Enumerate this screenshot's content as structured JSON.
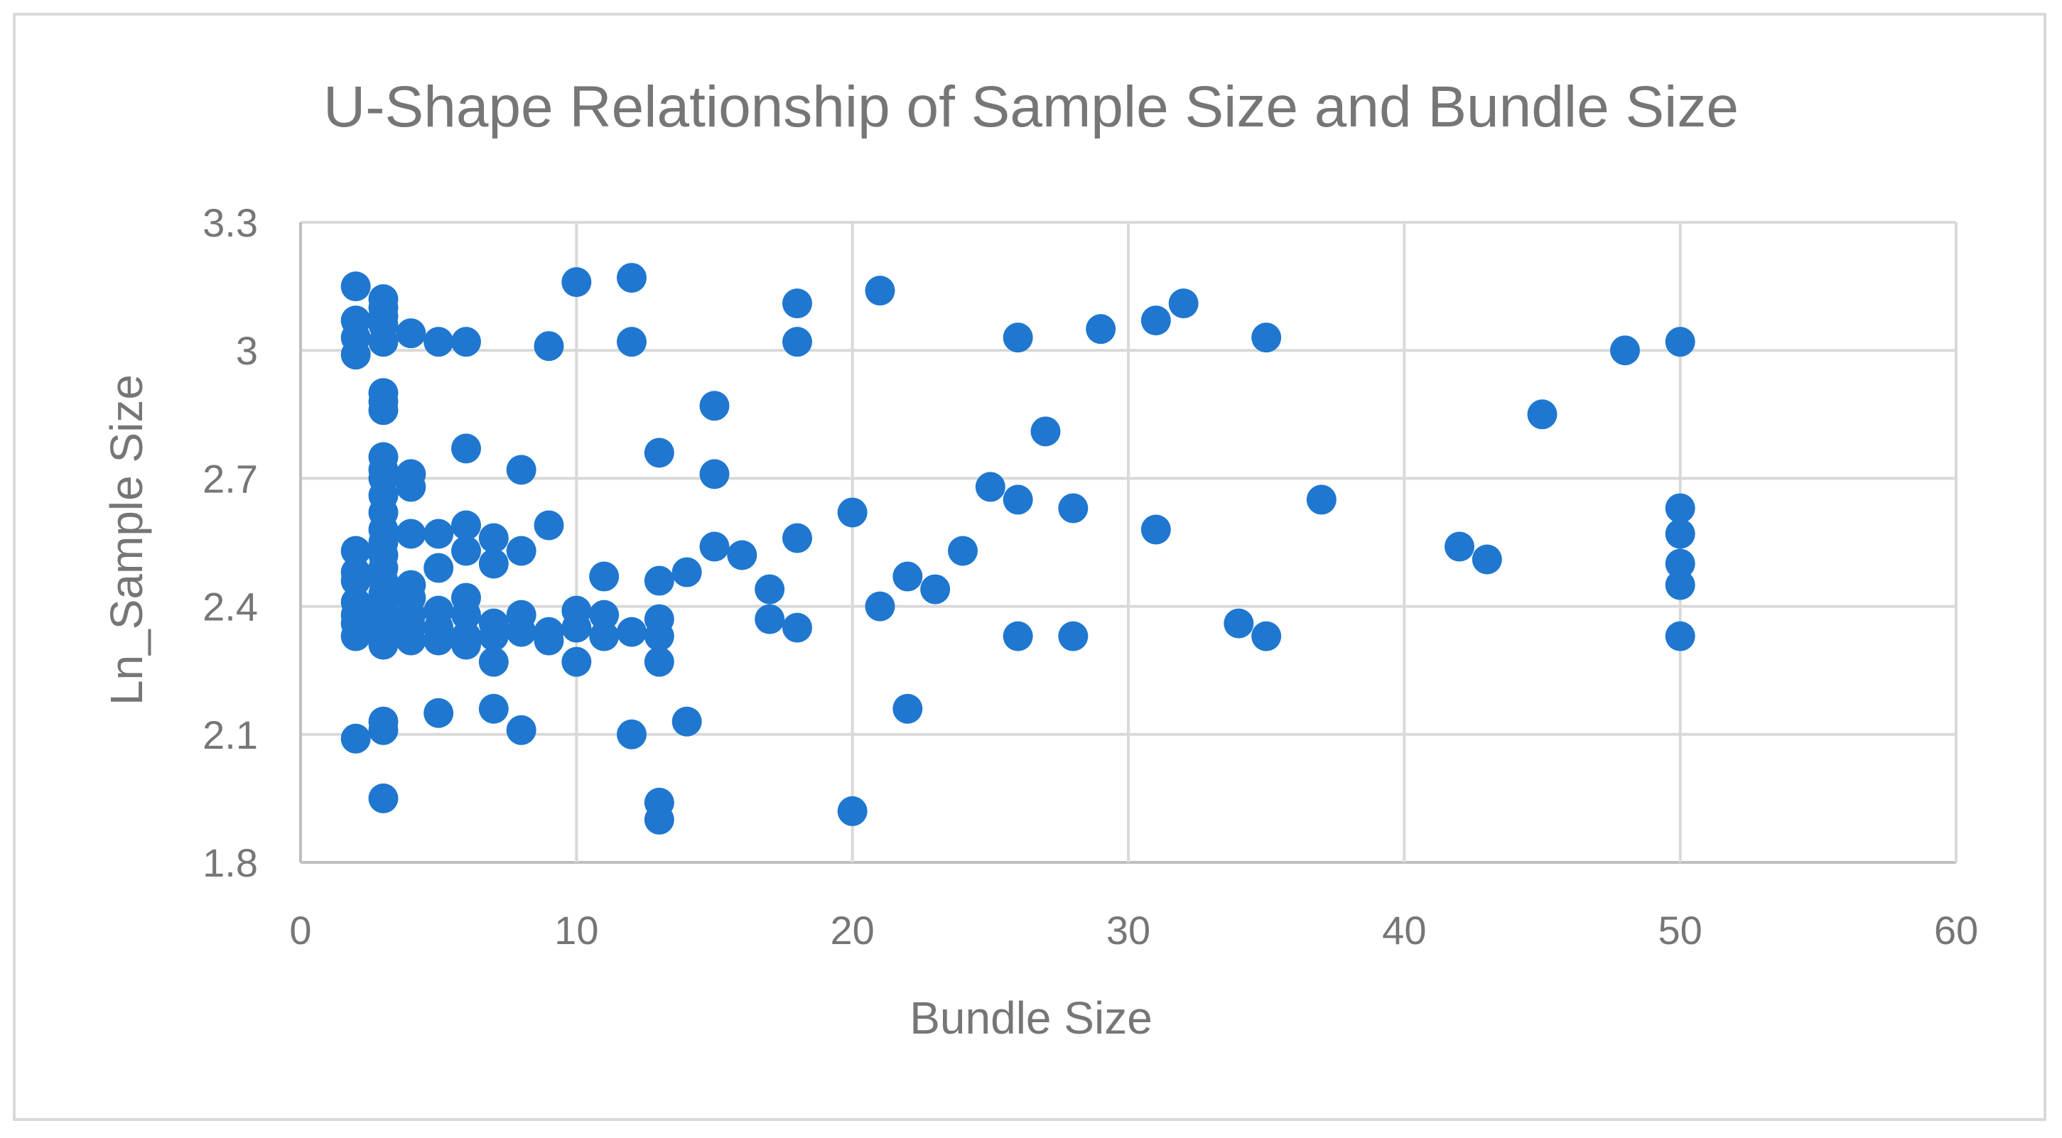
{
  "chart_data": {
    "type": "scatter",
    "title": "U-Shape Relationship of Sample Size and Bundle Size",
    "xlabel": "Bundle Size",
    "ylabel": "Ln_Sample Size",
    "xlim": [
      0,
      60
    ],
    "ylim": [
      1.8,
      3.3
    ],
    "xticks": [
      "0",
      "10",
      "20",
      "30",
      "40",
      "50",
      "60"
    ],
    "yticks": [
      "1.8",
      "2.1",
      "2.4",
      "2.7",
      "3",
      "3.3"
    ],
    "grid": true,
    "marker_color": "#1f77d0",
    "points": [
      [
        2,
        3.15
      ],
      [
        2,
        3.07
      ],
      [
        2,
        3.03
      ],
      [
        2,
        2.99
      ],
      [
        2,
        2.53
      ],
      [
        2,
        2.48
      ],
      [
        2,
        2.46
      ],
      [
        2,
        2.41
      ],
      [
        2,
        2.38
      ],
      [
        2,
        2.36
      ],
      [
        2,
        2.33
      ],
      [
        2,
        2.09
      ],
      [
        3,
        3.12
      ],
      [
        3,
        3.1
      ],
      [
        3,
        3.08
      ],
      [
        3,
        3.06
      ],
      [
        3,
        3.02
      ],
      [
        3,
        2.9
      ],
      [
        3,
        2.88
      ],
      [
        3,
        2.86
      ],
      [
        3,
        2.75
      ],
      [
        3,
        2.72
      ],
      [
        3,
        2.7
      ],
      [
        3,
        2.66
      ],
      [
        3,
        2.62
      ],
      [
        3,
        2.58
      ],
      [
        3,
        2.55
      ],
      [
        3,
        2.52
      ],
      [
        3,
        2.49
      ],
      [
        3,
        2.46
      ],
      [
        3,
        2.43
      ],
      [
        3,
        2.4
      ],
      [
        3,
        2.37
      ],
      [
        3,
        2.35
      ],
      [
        3,
        2.33
      ],
      [
        3,
        2.31
      ],
      [
        3,
        2.13
      ],
      [
        3,
        2.11
      ],
      [
        3,
        1.95
      ],
      [
        4,
        3.04
      ],
      [
        4,
        2.71
      ],
      [
        4,
        2.68
      ],
      [
        4,
        2.57
      ],
      [
        4,
        2.45
      ],
      [
        4,
        2.42
      ],
      [
        4,
        2.38
      ],
      [
        4,
        2.35
      ],
      [
        4,
        2.32
      ],
      [
        5,
        3.02
      ],
      [
        5,
        2.57
      ],
      [
        5,
        2.49
      ],
      [
        5,
        2.39
      ],
      [
        5,
        2.35
      ],
      [
        5,
        2.32
      ],
      [
        5,
        2.15
      ],
      [
        6,
        3.02
      ],
      [
        6,
        2.77
      ],
      [
        6,
        2.59
      ],
      [
        6,
        2.53
      ],
      [
        6,
        2.42
      ],
      [
        6,
        2.38
      ],
      [
        6,
        2.33
      ],
      [
        6,
        2.31
      ],
      [
        7,
        2.56
      ],
      [
        7,
        2.5
      ],
      [
        7,
        2.36
      ],
      [
        7,
        2.33
      ],
      [
        7,
        2.27
      ],
      [
        7,
        2.16
      ],
      [
        8,
        2.72
      ],
      [
        8,
        2.53
      ],
      [
        8,
        2.38
      ],
      [
        8,
        2.34
      ],
      [
        8,
        2.11
      ],
      [
        9,
        3.01
      ],
      [
        9,
        2.59
      ],
      [
        9,
        2.34
      ],
      [
        9,
        2.32
      ],
      [
        10,
        3.16
      ],
      [
        10,
        2.39
      ],
      [
        10,
        2.35
      ],
      [
        10,
        2.27
      ],
      [
        11,
        2.47
      ],
      [
        11,
        2.38
      ],
      [
        11,
        2.33
      ],
      [
        12,
        3.17
      ],
      [
        12,
        3.02
      ],
      [
        12,
        2.34
      ],
      [
        12,
        2.1
      ],
      [
        13,
        2.76
      ],
      [
        13,
        2.46
      ],
      [
        13,
        2.37
      ],
      [
        13,
        2.33
      ],
      [
        13,
        2.27
      ],
      [
        13,
        1.94
      ],
      [
        13,
        1.9
      ],
      [
        14,
        2.48
      ],
      [
        14,
        2.13
      ],
      [
        15,
        2.87
      ],
      [
        15,
        2.71
      ],
      [
        15,
        2.54
      ],
      [
        16,
        2.52
      ],
      [
        17,
        2.44
      ],
      [
        17,
        2.37
      ],
      [
        18,
        3.11
      ],
      [
        18,
        3.02
      ],
      [
        18,
        2.56
      ],
      [
        18,
        2.35
      ],
      [
        20,
        2.62
      ],
      [
        20,
        1.92
      ],
      [
        21,
        3.14
      ],
      [
        21,
        2.4
      ],
      [
        22,
        2.47
      ],
      [
        22,
        2.16
      ],
      [
        23,
        2.44
      ],
      [
        24,
        2.53
      ],
      [
        25,
        2.68
      ],
      [
        26,
        3.03
      ],
      [
        26,
        2.65
      ],
      [
        26,
        2.33
      ],
      [
        27,
        2.81
      ],
      [
        28,
        2.63
      ],
      [
        28,
        2.33
      ],
      [
        29,
        3.05
      ],
      [
        31,
        3.07
      ],
      [
        31,
        2.58
      ],
      [
        32,
        3.11
      ],
      [
        34,
        2.36
      ],
      [
        35,
        3.03
      ],
      [
        35,
        2.33
      ],
      [
        37,
        2.65
      ],
      [
        42,
        2.54
      ],
      [
        43,
        2.51
      ],
      [
        45,
        2.85
      ],
      [
        48,
        3.0
      ],
      [
        50,
        3.02
      ],
      [
        50,
        2.63
      ],
      [
        50,
        2.57
      ],
      [
        50,
        2.5
      ],
      [
        50,
        2.45
      ],
      [
        50,
        2.33
      ]
    ]
  }
}
